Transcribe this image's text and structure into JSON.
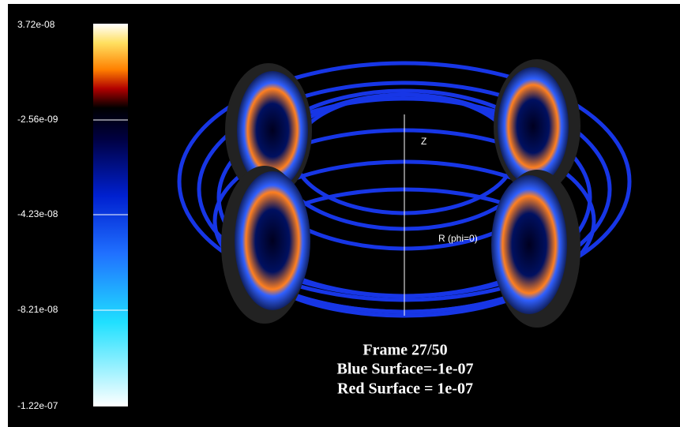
{
  "colorbar": {
    "labels": [
      "3.72e-08",
      "-2.56e-09",
      "-4.23e-08",
      "-8.21e-08",
      "-1.22e-07"
    ]
  },
  "axes": {
    "z_label": "Z",
    "r_label": "R (phi=0)"
  },
  "caption": {
    "lines": [
      "Frame 27/50",
      "Blue Surface=-1e-07",
      "Red Surface = 1e-07"
    ]
  }
}
